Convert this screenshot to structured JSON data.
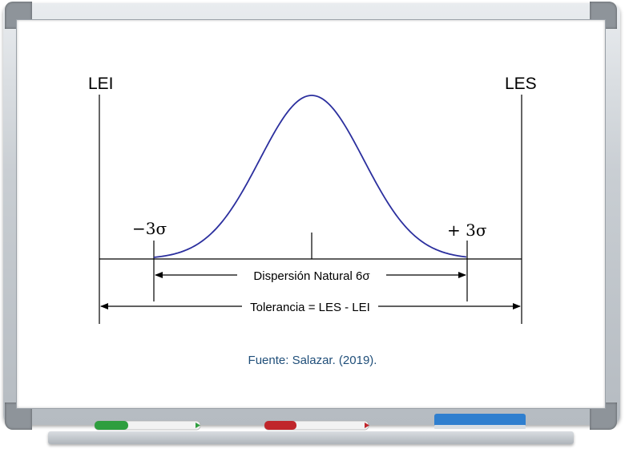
{
  "diagram": {
    "lower_limit_label": "LEI",
    "upper_limit_label": "LES",
    "minus_sigma_label": "−3σ",
    "plus_sigma_label": "+ 3σ",
    "natural_dispersion_label": "Dispersión Natural  6σ",
    "tolerance_label": "Tolerancia = LES - LEI"
  },
  "caption": "Fuente: Salazar. (2019).",
  "colors": {
    "curve": "#2b2f9e",
    "caption": "#1f4e79",
    "marker_green": "#2e9e3e",
    "marker_red": "#c0262b",
    "eraser_blue": "#2f7fcf"
  }
}
